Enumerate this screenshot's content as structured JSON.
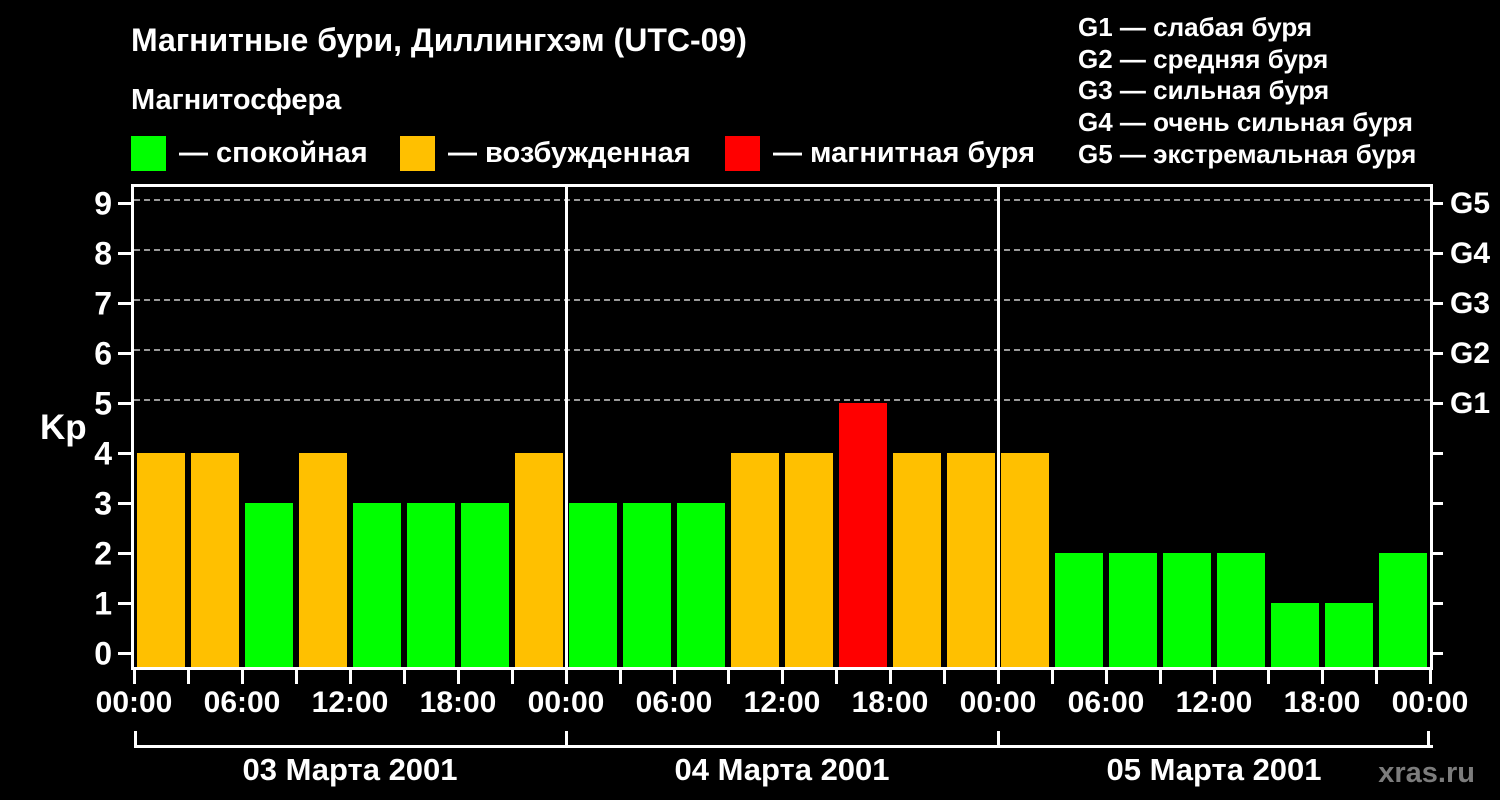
{
  "header": {
    "title": "Магнитные бури, Диллингхэм (UTC-09)",
    "subtitle": "Магнитосфера",
    "legend": [
      {
        "name": "quiet",
        "color": "#00ff00",
        "label": "— спокойная"
      },
      {
        "name": "excited",
        "color": "#ffc000",
        "label": "— возбужденная"
      },
      {
        "name": "storm",
        "color": "#ff0000",
        "label": "— магнитная буря"
      }
    ],
    "storm_scale_legend": [
      "G1 — слабая буря",
      "G2 — средняя буря",
      "G3 — сильная буря",
      "G4 — очень сильная буря",
      "G5 — экстремальная буря"
    ]
  },
  "chart_data": {
    "type": "bar",
    "title": "Магнитные бури, Диллингхэм (UTC-09)",
    "subtitle": "Магнитосфера",
    "ylabel": "Kp",
    "ylim": [
      0,
      9
    ],
    "yticks": [
      0,
      1,
      2,
      3,
      4,
      5,
      6,
      7,
      8,
      9
    ],
    "grid_kp_levels": [
      5,
      6,
      7,
      8,
      9
    ],
    "right_axis": [
      {
        "label": "G1",
        "kp": 5
      },
      {
        "label": "G2",
        "kp": 6
      },
      {
        "label": "G3",
        "kp": 7
      },
      {
        "label": "G4",
        "kp": 8
      },
      {
        "label": "G5",
        "kp": 9
      }
    ],
    "bar_interval_hours": 3,
    "x_tick_labels": [
      "00:00",
      "06:00",
      "12:00",
      "18:00",
      "00:00",
      "06:00",
      "12:00",
      "18:00",
      "00:00",
      "06:00",
      "12:00",
      "18:00",
      "00:00"
    ],
    "days": [
      {
        "date": "03 Марта 2001",
        "values": [
          4,
          4,
          3,
          4,
          3,
          3,
          3,
          4
        ]
      },
      {
        "date": "04 Марта 2001",
        "values": [
          3,
          3,
          3,
          4,
          4,
          5,
          4,
          4
        ]
      },
      {
        "date": "05 Марта 2001",
        "values": [
          4,
          2,
          2,
          2,
          2,
          1,
          1,
          2
        ]
      }
    ],
    "colors": {
      "quiet": "#00ff00",
      "excited": "#ffc000",
      "storm": "#ff0000"
    },
    "color_thresholds": {
      "quiet_max": 3,
      "excited": 4,
      "storm_min": 5
    },
    "legend_position": "top",
    "grid": "dashed-horizontal-G-levels-only"
  },
  "footer": {
    "watermark": "xras.ru"
  }
}
